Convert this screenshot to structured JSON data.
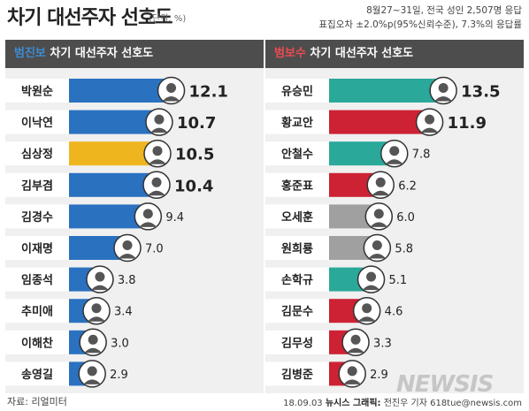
{
  "header": {
    "title": "차기 대선주자 선호도",
    "unit": "(단위: %)",
    "survey_lines": [
      "8월27~31일, 전국 성인 2,507명 응답",
      "표집오차 ±2.0%p(95%신뢰수준), 7.3%의 응답률"
    ]
  },
  "footer": {
    "source": "자료: 리얼미터",
    "credit_date": "18.09.03",
    "credit_org": "뉴시스 그래픽:",
    "credit_name": "전진우 기자 618tue@newsis.com",
    "logo": "NEWSIS"
  },
  "colors": {
    "blue": "#2a71c0",
    "yellow": "#efb51e",
    "teal": "#2aa89a",
    "red": "#cc2233",
    "gray": "#a0a0a0",
    "label_bg": "#ffffff",
    "track": "#e2e2e2"
  },
  "chart_data": [
    {
      "type": "bar",
      "orientation": "horizontal",
      "title_lead": "범진보",
      "title_rest": " 차기 대선주자 선호도",
      "xlim": [
        0,
        14
      ],
      "categories": [
        "박원순",
        "이낙연",
        "심상정",
        "김부겸",
        "김경수",
        "이재명",
        "임종석",
        "추미애",
        "이해찬",
        "송영길"
      ],
      "values": [
        12.1,
        10.7,
        10.5,
        10.4,
        9.4,
        7.0,
        3.8,
        3.4,
        3.0,
        2.9
      ],
      "value_labels": [
        "12.1",
        "10.7",
        "10.5",
        "10.4",
        "9.4",
        "7.0",
        "3.8",
        "3.4",
        "3.0",
        "2.9"
      ],
      "bar_colors": [
        "blue",
        "blue",
        "yellow",
        "blue",
        "blue",
        "blue",
        "blue",
        "blue",
        "blue",
        "blue"
      ]
    },
    {
      "type": "bar",
      "orientation": "horizontal",
      "title_lead": "범보수",
      "title_rest": " 차기 대선주자 선호도",
      "xlim": [
        0,
        14
      ],
      "categories": [
        "유승민",
        "황교안",
        "안철수",
        "홍준표",
        "오세훈",
        "원희룡",
        "손학규",
        "김문수",
        "김무성",
        "김병준"
      ],
      "values": [
        13.5,
        11.9,
        7.8,
        6.2,
        6.0,
        5.8,
        5.1,
        4.6,
        3.3,
        2.9
      ],
      "value_labels": [
        "13.5",
        "11.9",
        "7.8",
        "6.2",
        "6.0",
        "5.8",
        "5.1",
        "4.6",
        "3.3",
        "2.9"
      ],
      "bar_colors": [
        "teal",
        "red",
        "teal",
        "red",
        "gray",
        "gray",
        "teal",
        "red",
        "red",
        "red"
      ]
    }
  ]
}
